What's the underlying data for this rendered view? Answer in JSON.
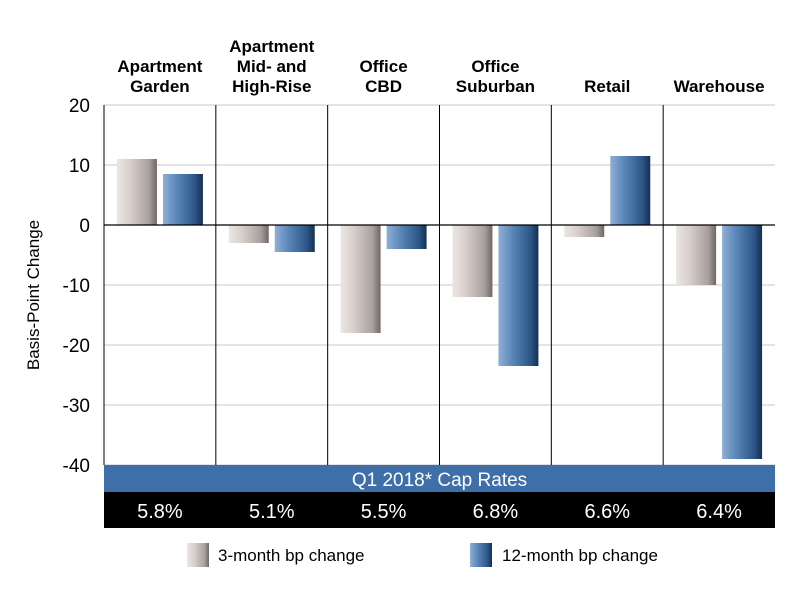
{
  "chart_data": {
    "type": "bar",
    "title": "",
    "xlabel": "",
    "ylabel": "Basis-Point Change",
    "ylim": [
      -40,
      20
    ],
    "yticks": [
      20,
      10,
      0,
      -10,
      -20,
      -30,
      -40
    ],
    "categories": [
      [
        "Apartment",
        "Garden"
      ],
      [
        "Apartment",
        "Mid- and",
        "High-Rise"
      ],
      [
        "Office",
        "CBD"
      ],
      [
        "Office",
        "Suburban"
      ],
      [
        "Retail"
      ],
      [
        "Warehouse"
      ]
    ],
    "series": [
      {
        "name": "3-month bp change",
        "values": [
          11,
          -3,
          -18,
          -12,
          -2,
          -10
        ],
        "color": "#b5aaa8"
      },
      {
        "name": "12-month bp change",
        "values": [
          8.5,
          -4.5,
          -4,
          -23.5,
          11.5,
          -39
        ],
        "color": "#3f6d9e"
      }
    ],
    "cap_rates_title": "Q1 2018* Cap Rates",
    "cap_rates": [
      "5.8%",
      "5.1%",
      "5.5%",
      "6.8%",
      "6.6%",
      "6.4%"
    ],
    "grid": true,
    "legend_position": "bottom"
  },
  "colors": {
    "banner": "#3f6fa8",
    "rates_bg": "#000000",
    "grid": "#c8c8c8",
    "divider": "#000000"
  }
}
